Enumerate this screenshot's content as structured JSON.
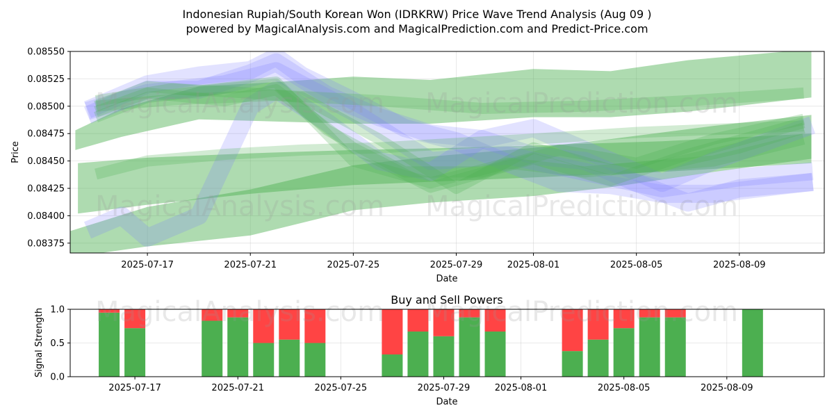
{
  "title_line1": "Indonesian Rupiah/South Korean Won (IDRKRW) Price Wave Trend Analysis (Aug 09 )",
  "title_line2": "powered by MagicalAnalysis.com and MagicalPrediction.com and Predict-Price.com",
  "watermarks": [
    "MagicalAnalysis.com",
    "MagicalPrediction.com"
  ],
  "colors": {
    "green_band": "#4caf50",
    "blue_band": "#7b7bff",
    "buy": "#4caf50",
    "sell": "#ff4444"
  },
  "chart_data": [
    {
      "type": "area",
      "title": "",
      "xlabel": "Date",
      "ylabel": "Price",
      "xlim": [
        "2025-07-14",
        "2025-08-12.3"
      ],
      "ylim": [
        0.08366,
        0.0855
      ],
      "yticks": [
        "0.08375",
        "0.08400",
        "0.08425",
        "0.08450",
        "0.08475",
        "0.08500",
        "0.08525",
        "0.08550"
      ],
      "xticks": [
        "2025-07-17",
        "2025-07-21",
        "2025-07-25",
        "2025-07-29",
        "2025-08-01",
        "2025-08-05",
        "2025-08-09"
      ],
      "grid": true,
      "green_bands": [
        {
          "x": [
            "2025-07-14.2",
            "2025-07-16",
            "2025-07-19",
            "2025-07-22",
            "2025-07-25",
            "2025-07-28",
            "2025-08-01",
            "2025-08-04",
            "2025-08-07",
            "2025-08-11.8"
          ],
          "upper": [
            0.08478,
            0.08498,
            0.08518,
            0.08522,
            0.08527,
            0.08524,
            0.08534,
            0.08532,
            0.08542,
            0.08552
          ],
          "lower": [
            0.0846,
            0.08472,
            0.08488,
            0.08486,
            0.08484,
            0.08484,
            0.0849,
            0.0849,
            0.08495,
            0.08508
          ],
          "alpha": 0.45
        },
        {
          "x": [
            "2025-07-14.3",
            "2025-07-17",
            "2025-07-21",
            "2025-07-25",
            "2025-07-29",
            "2025-08-02",
            "2025-08-06",
            "2025-08-11.8"
          ],
          "upper": [
            0.08448,
            0.08453,
            0.08457,
            0.0846,
            0.08462,
            0.08465,
            0.08468,
            0.08475
          ],
          "lower": [
            0.08402,
            0.0841,
            0.0842,
            0.08428,
            0.08432,
            0.08436,
            0.0844,
            0.08448
          ],
          "alpha": 0.45
        },
        {
          "x": [
            "2025-07-14",
            "2025-07-17",
            "2025-07-21",
            "2025-07-25",
            "2025-07-28",
            "2025-08-01",
            "2025-08-04",
            "2025-08-08",
            "2025-08-11.8"
          ],
          "upper": [
            0.08386,
            0.08408,
            0.08424,
            0.08446,
            0.08454,
            0.08462,
            0.0847,
            0.08482,
            0.08492
          ],
          "lower": [
            0.08362,
            0.08372,
            0.08382,
            0.08405,
            0.08412,
            0.08418,
            0.08426,
            0.0844,
            0.08452
          ],
          "alpha": 0.45
        }
      ],
      "green_lines": [
        {
          "x": [
            "2025-07-15",
            "2025-07-17",
            "2025-07-19",
            "2025-07-22",
            "2025-07-25",
            "2025-07-28",
            "2025-07-31",
            "2025-08-03",
            "2025-08-06",
            "2025-08-09",
            "2025-08-11.5"
          ],
          "y": [
            0.085,
            0.08518,
            0.08514,
            0.08522,
            0.0845,
            0.0843,
            0.08448,
            0.0844,
            0.08446,
            0.08462,
            0.0848
          ]
        },
        {
          "x": [
            "2025-07-15",
            "2025-07-17",
            "2025-07-20",
            "2025-07-22",
            "2025-07-25",
            "2025-07-28",
            "2025-08-01",
            "2025-08-04",
            "2025-08-07",
            "2025-08-11.5"
          ],
          "y": [
            0.08495,
            0.08512,
            0.08505,
            0.08515,
            0.08462,
            0.08426,
            0.08452,
            0.08432,
            0.08456,
            0.08485
          ]
        },
        {
          "x": [
            "2025-07-15",
            "2025-07-18",
            "2025-07-21",
            "2025-07-23",
            "2025-07-26",
            "2025-07-29",
            "2025-08-01",
            "2025-08-04",
            "2025-08-08",
            "2025-08-11.5"
          ],
          "y": [
            0.08505,
            0.08516,
            0.08512,
            0.08508,
            0.0847,
            0.08425,
            0.08462,
            0.08442,
            0.0845,
            0.0847
          ]
        },
        {
          "x": [
            "2025-07-15",
            "2025-07-17",
            "2025-07-20",
            "2025-07-22",
            "2025-07-24",
            "2025-07-27",
            "2025-07-30",
            "2025-08-02",
            "2025-08-05",
            "2025-08-08",
            "2025-08-11.5"
          ],
          "y": [
            0.0849,
            0.08508,
            0.08516,
            0.0852,
            0.08478,
            0.0844,
            0.0844,
            0.0846,
            0.08448,
            0.0847,
            0.08488
          ]
        },
        {
          "x": [
            "2025-07-15",
            "2025-07-17",
            "2025-07-20",
            "2025-07-23",
            "2025-07-26",
            "2025-07-29",
            "2025-08-01",
            "2025-08-05",
            "2025-08-11.5"
          ],
          "y": [
            0.08438,
            0.0845,
            0.08456,
            0.0846,
            0.08462,
            0.08466,
            0.0847,
            0.08476,
            0.08482
          ]
        },
        {
          "x": [
            "2025-07-15",
            "2025-07-18",
            "2025-07-22",
            "2025-07-26",
            "2025-07-30",
            "2025-08-03",
            "2025-08-07",
            "2025-08-11.5"
          ],
          "y": [
            0.085,
            0.08506,
            0.0851,
            0.08505,
            0.08498,
            0.085,
            0.08505,
            0.08512
          ]
        }
      ],
      "blue_bands": [
        {
          "x": [
            "2025-07-15",
            "2025-07-17",
            "2025-07-19",
            "2025-07-21",
            "2025-07-22",
            "2025-07-23",
            "2025-07-25",
            "2025-07-27",
            "2025-07-29",
            "2025-07-31",
            "2025-08-02",
            "2025-08-04",
            "2025-08-06",
            "2025-08-08",
            "2025-08-11.5"
          ],
          "y": [
            0.085,
            0.0852,
            0.08528,
            0.08533,
            0.08545,
            0.08528,
            0.08505,
            0.0848,
            0.08468,
            0.08448,
            0.0843,
            0.08428,
            0.0842,
            0.0842,
            0.0843
          ],
          "alpha": 0.22
        },
        {
          "x": [
            "2025-07-15",
            "2025-07-17",
            "2025-07-19",
            "2025-07-21",
            "2025-07-22",
            "2025-07-24",
            "2025-07-26",
            "2025-07-28",
            "2025-07-30",
            "2025-08-01",
            "2025-08-03",
            "2025-08-05",
            "2025-08-07",
            "2025-08-09",
            "2025-08-11.5"
          ],
          "y": [
            0.08495,
            0.08515,
            0.08515,
            0.0853,
            0.0854,
            0.0851,
            0.0849,
            0.08475,
            0.0847,
            0.08455,
            0.0845,
            0.0843,
            0.08412,
            0.08425,
            0.0843
          ],
          "alpha": 0.22
        },
        {
          "x": [
            "2025-07-15",
            "2025-07-16",
            "2025-07-17",
            "2025-07-19",
            "2025-07-21",
            "2025-07-22",
            "2025-07-24",
            "2025-07-26",
            "2025-07-28",
            "2025-07-30",
            "2025-08-01",
            "2025-08-04",
            "2025-08-06",
            "2025-08-08",
            "2025-08-11.5"
          ],
          "y": [
            0.0839,
            0.084,
            0.0838,
            0.084,
            0.085,
            0.08515,
            0.08485,
            0.0845,
            0.0844,
            0.0847,
            0.0848,
            0.0845,
            0.0843,
            0.0845,
            0.0848
          ],
          "alpha": 0.22
        },
        {
          "x": [
            "2025-07-15",
            "2025-07-17",
            "2025-07-20",
            "2025-07-22",
            "2025-07-25",
            "2025-07-28",
            "2025-07-31",
            "2025-08-03",
            "2025-08-06",
            "2025-08-09",
            "2025-08-11.5"
          ],
          "y": [
            0.08498,
            0.08512,
            0.0852,
            0.08532,
            0.08495,
            0.0845,
            0.08455,
            0.0844,
            0.08425,
            0.08435,
            0.0844
          ],
          "alpha": 0.22
        }
      ]
    },
    {
      "type": "bar",
      "title": "Buy and Sell Powers",
      "xlabel": "Date",
      "ylabel": "Signal Strength",
      "ylim": [
        0,
        1.0
      ],
      "yticks": [
        "0.0",
        "0.5",
        "1.0"
      ],
      "xticks": [
        "2025-07-17",
        "2025-07-21",
        "2025-07-25",
        "2025-07-29",
        "2025-08-01",
        "2025-08-05",
        "2025-08-09"
      ],
      "categories": [
        "2025-07-16",
        "2025-07-17",
        "2025-07-20",
        "2025-07-21",
        "2025-07-22",
        "2025-07-23",
        "2025-07-24",
        "2025-07-27",
        "2025-07-28",
        "2025-07-29",
        "2025-07-30",
        "2025-07-31",
        "2025-08-03",
        "2025-08-04",
        "2025-08-05",
        "2025-08-06",
        "2025-08-07",
        "2025-08-10"
      ],
      "series": [
        {
          "name": "Buy",
          "values": [
            0.95,
            0.72,
            0.83,
            0.88,
            0.5,
            0.55,
            0.5,
            0.33,
            0.67,
            0.6,
            0.88,
            0.67,
            0.38,
            0.55,
            0.72,
            0.88,
            0.88,
            1.0
          ]
        },
        {
          "name": "Sell",
          "values": [
            0.05,
            0.28,
            0.17,
            0.12,
            0.5,
            0.45,
            0.5,
            0.67,
            0.33,
            0.4,
            0.12,
            0.33,
            0.62,
            0.45,
            0.28,
            0.12,
            0.12,
            0.0
          ]
        }
      ]
    }
  ]
}
